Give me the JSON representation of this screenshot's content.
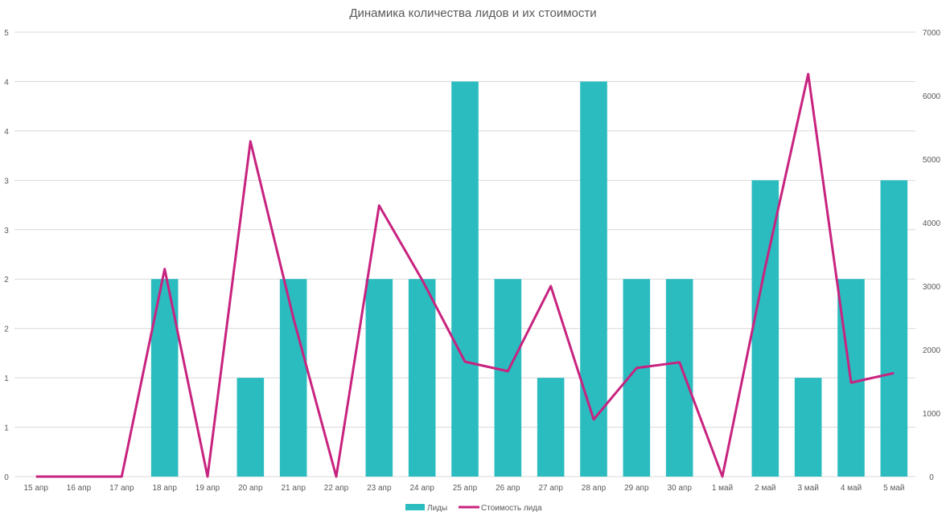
{
  "chart_data": {
    "type": "bar",
    "title": "Динамика количества лидов и их стоимости",
    "categories": [
      "15 апр",
      "16 апр",
      "17 апр",
      "18 апр",
      "19 апр",
      "20 апр",
      "21 апр",
      "22 апр",
      "23 апр",
      "24 апр",
      "25 апр",
      "26 апр",
      "27 апр",
      "28 апр",
      "29 апр",
      "30 апр",
      "1 май",
      "2 май",
      "3 май",
      "4 май",
      "5 май"
    ],
    "left_axis": {
      "ylim": [
        0,
        4.5
      ],
      "tick_values": [
        0,
        0.5,
        1,
        1.5,
        2,
        2.5,
        3,
        3.5,
        4,
        4.5
      ],
      "tick_labels": [
        "0",
        "1",
        "1",
        "2",
        "2",
        "3",
        "3",
        "4",
        "4",
        "5"
      ]
    },
    "right_axis": {
      "ylim": [
        0,
        7000
      ],
      "tick_values": [
        0,
        1000,
        2000,
        3000,
        4000,
        5000,
        6000,
        7000
      ],
      "tick_labels": [
        "0",
        "1000",
        "2000",
        "3000",
        "4000",
        "5000",
        "6000",
        "7000"
      ]
    },
    "grid": true,
    "legend_position": "bottom",
    "series": [
      {
        "name": "Лиды",
        "kind": "bar",
        "axis": "left",
        "color": "#2bbcc0",
        "values": [
          0,
          0,
          0,
          2,
          0,
          1,
          2,
          0,
          2,
          2,
          4,
          2,
          1,
          4,
          2,
          2,
          0,
          3,
          1,
          2,
          3
        ]
      },
      {
        "name": "Стоимость лида",
        "kind": "line",
        "axis": "right",
        "color": "#c8237f",
        "values": [
          0,
          0,
          0,
          3270,
          0,
          5280,
          2500,
          0,
          4270,
          3100,
          1810,
          1660,
          3000,
          900,
          1710,
          1800,
          0,
          3300,
          6340,
          1480,
          1630
        ]
      }
    ]
  }
}
